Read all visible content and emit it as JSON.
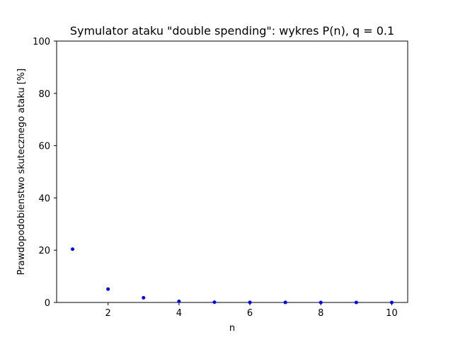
{
  "chart_data": {
    "type": "scatter",
    "title": "Symulator ataku \"double spending\": wykres P(n), q = 0.1",
    "xlabel": "n",
    "ylabel": "Prawdopodobienstwo skutecznego ataku [%]",
    "xlim": [
      0.55,
      10.45
    ],
    "ylim": [
      0,
      100
    ],
    "xticks": [
      2,
      4,
      6,
      8,
      10
    ],
    "yticks": [
      0,
      20,
      40,
      60,
      80,
      100
    ],
    "grid": false,
    "marker_color": "#0000ff",
    "x": [
      1,
      2,
      3,
      4,
      5,
      6,
      7,
      8,
      9,
      10
    ],
    "y": [
      20.4,
      5.1,
      1.8,
      0.4,
      0.1,
      0.05,
      0.02,
      0.01,
      0.0,
      0.0
    ]
  }
}
